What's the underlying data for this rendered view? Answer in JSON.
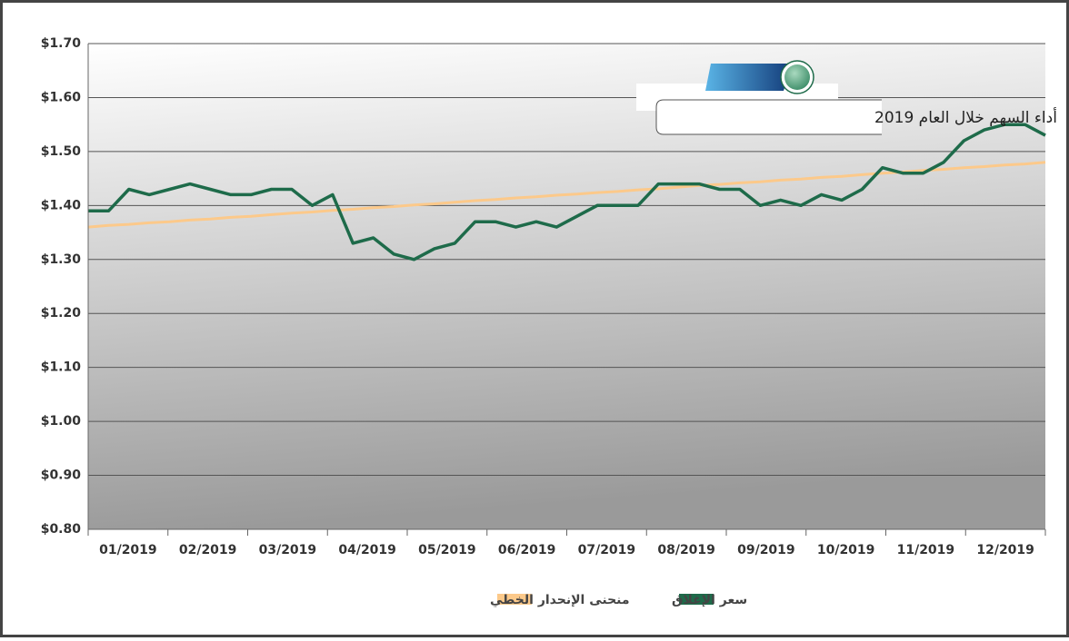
{
  "chart_data": {
    "type": "line",
    "title": "أداء السهم خلال العام 2019",
    "categories": [
      "01/2019",
      null,
      null,
      null,
      "02/2019",
      null,
      null,
      null,
      "03/2019",
      null,
      null,
      null,
      "04/2019",
      null,
      null,
      null,
      "05/2019",
      null,
      null,
      null,
      "06/2019",
      null,
      null,
      null,
      "07/2019",
      null,
      null,
      null,
      "08/2019",
      null,
      null,
      null,
      "09/2019",
      null,
      null,
      null,
      "10/2019",
      null,
      null,
      null,
      "11/2019",
      null,
      null,
      null,
      "12/2019",
      null,
      null,
      null
    ],
    "series": [
      {
        "name": "سعر الإغلاق",
        "color": "#1e6b4a",
        "values": [
          1.39,
          1.39,
          1.43,
          1.42,
          1.43,
          1.44,
          1.43,
          1.42,
          1.42,
          1.43,
          1.43,
          1.4,
          1.42,
          1.33,
          1.34,
          1.31,
          1.3,
          1.32,
          1.33,
          1.37,
          1.37,
          1.36,
          1.37,
          1.36,
          1.38,
          1.4,
          1.4,
          1.4,
          1.44,
          1.44,
          1.44,
          1.43,
          1.43,
          1.4,
          1.41,
          1.4,
          1.42,
          1.41,
          1.43,
          1.47,
          1.46,
          1.46,
          1.48,
          1.52,
          1.54,
          1.55,
          1.55,
          1.53
        ]
      },
      {
        "name": "منحنى الإنحدار الخطي",
        "color": "#fcc98a",
        "values": [
          1.36,
          1.363,
          1.365,
          1.368,
          1.37,
          1.373,
          1.375,
          1.378,
          1.38,
          1.383,
          1.386,
          1.388,
          1.391,
          1.393,
          1.396,
          1.398,
          1.401,
          1.403,
          1.406,
          1.409,
          1.411,
          1.414,
          1.416,
          1.419,
          1.421,
          1.424,
          1.426,
          1.429,
          1.431,
          1.434,
          1.437,
          1.439,
          1.442,
          1.444,
          1.447,
          1.449,
          1.452,
          1.454,
          1.457,
          1.46,
          1.462,
          1.465,
          1.467,
          1.47,
          1.472,
          1.475,
          1.477,
          1.48
        ]
      }
    ],
    "ylim": [
      0.8,
      1.7
    ],
    "yticks": [
      {
        "value": 0.8,
        "label": "$0.80"
      },
      {
        "value": 0.9,
        "label": "$0.90"
      },
      {
        "value": 1.0,
        "label": "$1.00"
      },
      {
        "value": 1.1,
        "label": "$1.10"
      },
      {
        "value": 1.2,
        "label": "$1.20"
      },
      {
        "value": 1.3,
        "label": "$1.30"
      },
      {
        "value": 1.4,
        "label": "$1.40"
      },
      {
        "value": 1.5,
        "label": "$1.50"
      },
      {
        "value": 1.6,
        "label": "$1.60"
      },
      {
        "value": 1.7,
        "label": "$1.70"
      }
    ],
    "grid": true
  }
}
